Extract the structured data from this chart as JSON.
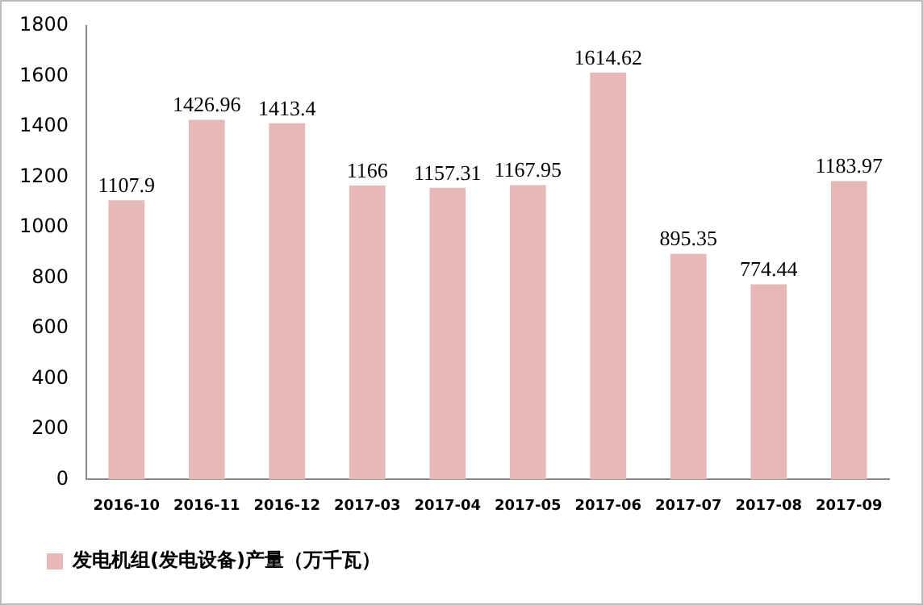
{
  "chart_data": {
    "type": "bar",
    "categories": [
      "2016-10",
      "2016-11",
      "2016-12",
      "2017-03",
      "2017-04",
      "2017-05",
      "2017-06",
      "2017-07",
      "2017-08",
      "2017-09"
    ],
    "series": [
      {
        "name": "发电机组(发电设备)产量（万千瓦）",
        "color": "#e6b9b8",
        "values": [
          1107.9,
          1426.96,
          1413.4,
          1166,
          1157.31,
          1167.95,
          1614.62,
          895.35,
          774.44,
          1183.97
        ]
      }
    ],
    "ylim": [
      0,
      1800
    ],
    "yticks": [
      0,
      200,
      400,
      600,
      800,
      1000,
      1200,
      1400,
      1600,
      1800
    ],
    "grid": false,
    "legend": "bottom",
    "data_labels": true
  }
}
